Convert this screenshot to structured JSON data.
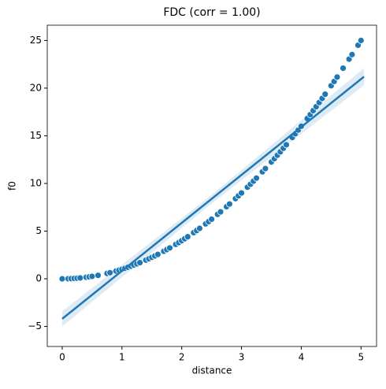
{
  "chart_data": {
    "type": "scatter",
    "title": "FDC (corr = 1.00)",
    "x_label": "distance",
    "y_label": "f0",
    "x": [
      0,
      0.1,
      0.15,
      0.2,
      0.25,
      0.3,
      0.4,
      0.45,
      0.5,
      0.6,
      0.75,
      0.8,
      0.9,
      0.95,
      1.0,
      1.05,
      1.1,
      1.15,
      1.2,
      1.25,
      1.3,
      1.4,
      1.45,
      1.5,
      1.55,
      1.6,
      1.7,
      1.75,
      1.8,
      1.9,
      1.95,
      2.0,
      2.05,
      2.1,
      2.2,
      2.25,
      2.3,
      2.4,
      2.45,
      2.5,
      2.6,
      2.65,
      2.75,
      2.8,
      2.9,
      2.95,
      3.0,
      3.1,
      3.15,
      3.2,
      3.25,
      3.35,
      3.4,
      3.5,
      3.55,
      3.6,
      3.65,
      3.7,
      3.75,
      3.85,
      3.9,
      3.95,
      4.0,
      4.1,
      4.15,
      4.2,
      4.25,
      4.3,
      4.35,
      4.4,
      4.5,
      4.55,
      4.6,
      4.7,
      4.8,
      4.85,
      4.95,
      5.0
    ],
    "values": [
      0,
      0.01,
      0.02,
      0.04,
      0.06,
      0.09,
      0.16,
      0.2,
      0.25,
      0.36,
      0.56,
      0.64,
      0.81,
      0.9,
      1,
      1.1,
      1.21,
      1.32,
      1.44,
      1.56,
      1.69,
      1.96,
      2.1,
      2.25,
      2.4,
      2.56,
      2.89,
      3.06,
      3.24,
      3.61,
      3.8,
      4,
      4.2,
      4.41,
      4.84,
      5.06,
      5.29,
      5.76,
      6,
      6.25,
      6.76,
      7.02,
      7.56,
      7.84,
      8.41,
      8.7,
      9,
      9.61,
      9.92,
      10.24,
      10.56,
      11.22,
      11.56,
      12.25,
      12.6,
      12.96,
      13.32,
      13.69,
      14.06,
      14.82,
      15.21,
      15.6,
      16,
      16.81,
      17.22,
      17.64,
      18.06,
      18.49,
      18.92,
      19.36,
      20.25,
      20.7,
      21.16,
      22.09,
      23.04,
      23.52,
      24.5,
      25
    ],
    "color": "#1f77b4",
    "regression": {
      "x": [
        0,
        2.5,
        5.05
      ],
      "values": [
        -4.2,
        8.38,
        21.2
      ],
      "lower": [
        -5.0,
        7.9,
        20.3
      ],
      "upper": [
        -3.4,
        8.8,
        22.1
      ],
      "color": "#1f77b4"
    },
    "xlim": [
      -0.25,
      5.26
    ],
    "ylim": [
      -7.1,
      26.6
    ],
    "xticks": [
      0,
      1,
      2,
      3,
      4,
      5
    ],
    "yticks": [
      {
        "value": -5,
        "label": "−5"
      },
      0,
      5,
      10,
      15,
      20,
      25
    ],
    "grid": false
  }
}
